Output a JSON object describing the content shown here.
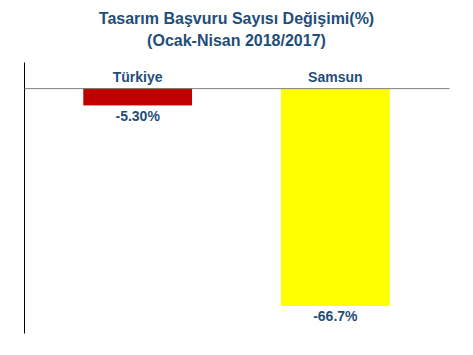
{
  "chart_data": {
    "type": "bar",
    "title": "Tasarım Başvuru Sayısı Değişimi(%)",
    "subtitle": "(Ocak-Nisan 2018/2017)",
    "categories": [
      "Türkiye",
      "Samsun"
    ],
    "values": [
      -5.3,
      -66.7
    ],
    "value_labels": [
      "-5.30%",
      "-66.7%"
    ],
    "data_labels": true,
    "colors": [
      "#c00000",
      "#ffff00"
    ],
    "ylim": [
      -75,
      8
    ],
    "yticks": [],
    "tick_labels": "x",
    "grid": false
  }
}
